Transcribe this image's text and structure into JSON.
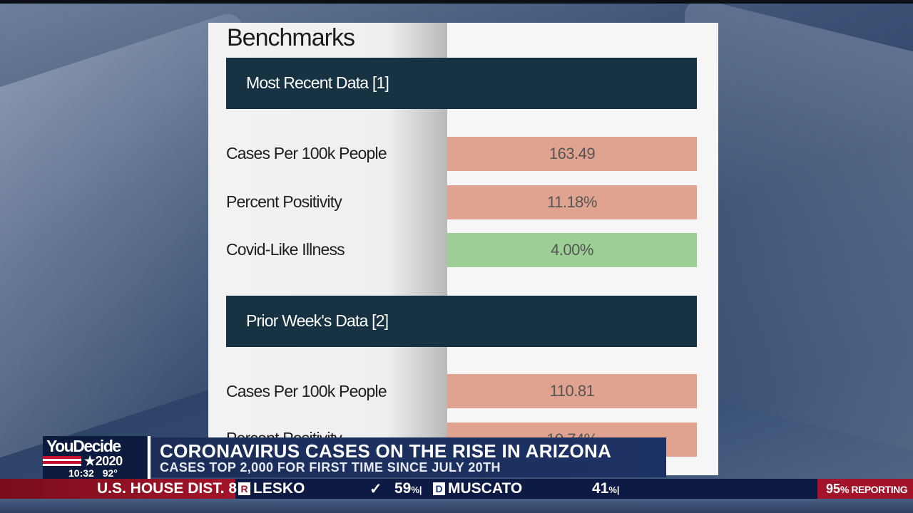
{
  "sheet": {
    "title": "Benchmarks",
    "sections": [
      {
        "label": "Most Recent Data [1]",
        "rows": [
          {
            "label": "Cases Per 100k People",
            "value": "163.49",
            "status_color": "#e0a38f"
          },
          {
            "label": "Percent Positivity",
            "value": "11.18%",
            "status_color": "#e0a38f"
          },
          {
            "label": "Covid-Like Illness",
            "value": "4.00%",
            "status_color": "#9ccf93"
          }
        ]
      },
      {
        "label": "Prior Week's Data [2]",
        "rows": [
          {
            "label": "Cases Per 100k People",
            "value": "110.81",
            "status_color": "#e0a38f"
          },
          {
            "label": "Percent Positivity",
            "value": "10.74%",
            "status_color": "#e0a38f"
          }
        ]
      }
    ]
  },
  "lower_third": {
    "brand": "YouDecide",
    "year": "★2020",
    "time": "10:32",
    "temperature": "92°",
    "headline": "CORONAVIRUS CASES ON THE RISE IN ARIZONA",
    "subhead": "CASES TOP 2,000 FOR FIRST TIME SINCE JULY 20TH"
  },
  "ticker": {
    "race": "U.S. HOUSE DIST. 8",
    "candidate1": {
      "party": "R",
      "name": "LESKO",
      "winner_mark": "✓",
      "pct": "59",
      "pct_sign": "%|"
    },
    "candidate2": {
      "party": "D",
      "name": "MUSCATO",
      "pct": "41",
      "pct_sign": "%|"
    },
    "reporting_pct": "95",
    "reporting_label": "% REPORTING"
  },
  "colors": {
    "section_bar": "#163243",
    "brand_blue": "#0c1a3d",
    "headline_blue": "#1b2d58",
    "ticker_red": "#a3142a"
  }
}
